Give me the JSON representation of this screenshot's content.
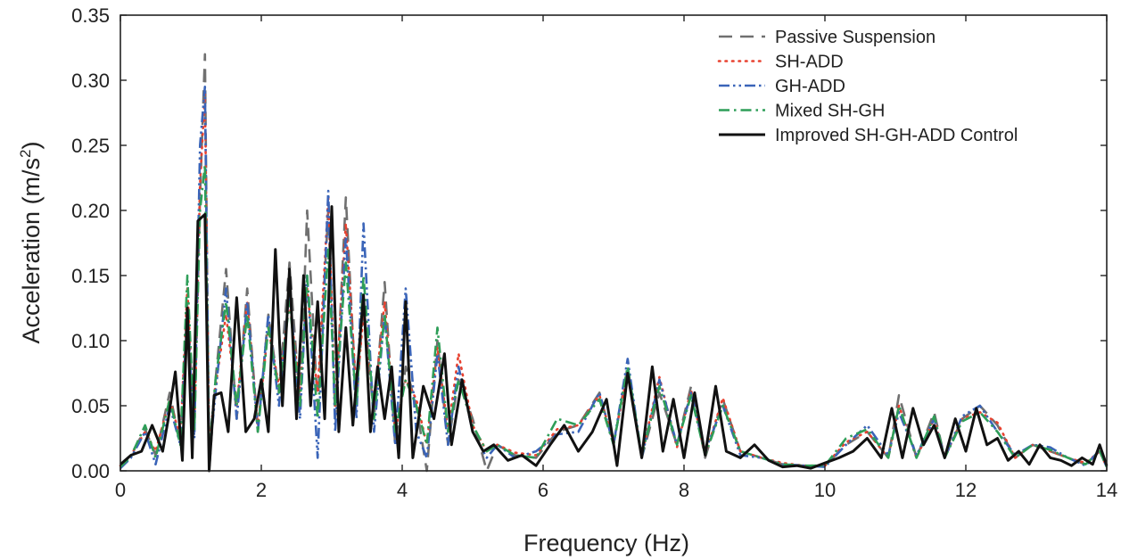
{
  "chart_data": {
    "type": "line",
    "title": "",
    "xlabel": "Frequency (Hz)",
    "ylabel_main": "Acceleration (m/s",
    "ylabel_sup": "2",
    "ylabel_tail": ")",
    "xlim": [
      0,
      14
    ],
    "ylim": [
      0,
      0.35
    ],
    "xticks": [
      0,
      2,
      4,
      6,
      8,
      10,
      12,
      14
    ],
    "xtick_labels": [
      "0",
      "2",
      "4",
      "6",
      "8",
      "10",
      "12",
      "14"
    ],
    "yticks": [
      0,
      0.05,
      0.1,
      0.15,
      0.2,
      0.25,
      0.3,
      0.35
    ],
    "ytick_labels": [
      "0.00",
      "0.05",
      "0.10",
      "0.15",
      "0.20",
      "0.25",
      "0.30",
      "0.35"
    ],
    "grid": false,
    "legend_position": "top-right",
    "series": [
      {
        "name": "Passive Suspension",
        "style": "dashed",
        "color": "#707070",
        "x": [
          0,
          0.15,
          0.35,
          0.5,
          0.7,
          0.85,
          0.95,
          1.05,
          1.13,
          1.2,
          1.26,
          1.35,
          1.5,
          1.65,
          1.8,
          1.95,
          2.1,
          2.25,
          2.4,
          2.55,
          2.65,
          2.8,
          2.95,
          3.05,
          3.2,
          3.35,
          3.45,
          3.6,
          3.75,
          3.9,
          4.05,
          4.2,
          4.35,
          4.5,
          4.65,
          4.8,
          5.0,
          5.2,
          5.35,
          5.6,
          5.9,
          6.2,
          6.5,
          6.8,
          7.0,
          7.2,
          7.4,
          7.65,
          7.9,
          8.1,
          8.3,
          8.55,
          8.8,
          9.1,
          9.4,
          9.7,
          10.0,
          10.3,
          10.6,
          10.9,
          11.05,
          11.3,
          11.55,
          11.7,
          11.95,
          12.2,
          12.45,
          12.7,
          12.95,
          13.2,
          13.45,
          13.7,
          13.9,
          14.0
        ],
        "y": [
          0.004,
          0.012,
          0.032,
          0.012,
          0.06,
          0.02,
          0.13,
          0.03,
          0.21,
          0.32,
          0.0,
          0.07,
          0.155,
          0.04,
          0.14,
          0.03,
          0.12,
          0.06,
          0.16,
          0.05,
          0.2,
          0.05,
          0.2,
          0.04,
          0.21,
          0.05,
          0.13,
          0.04,
          0.145,
          0.02,
          0.08,
          0.05,
          0.0,
          0.1,
          0.02,
          0.07,
          0.04,
          0.0,
          0.02,
          0.012,
          0.01,
          0.03,
          0.035,
          0.06,
          0.02,
          0.08,
          0.01,
          0.06,
          0.02,
          0.065,
          0.01,
          0.055,
          0.015,
          0.01,
          0.005,
          0.004,
          0.004,
          0.02,
          0.03,
          0.01,
          0.058,
          0.01,
          0.045,
          0.01,
          0.04,
          0.05,
          0.035,
          0.01,
          0.02,
          0.015,
          0.01,
          0.005,
          0.015,
          0.003
        ]
      },
      {
        "name": "SH-ADD",
        "style": "dotted",
        "color": "#e8412f",
        "x": [
          0,
          0.15,
          0.35,
          0.5,
          0.7,
          0.85,
          0.95,
          1.05,
          1.13,
          1.2,
          1.26,
          1.35,
          1.5,
          1.65,
          1.8,
          1.95,
          2.1,
          2.25,
          2.4,
          2.55,
          2.65,
          2.8,
          2.95,
          3.05,
          3.2,
          3.35,
          3.45,
          3.6,
          3.75,
          3.9,
          4.05,
          4.2,
          4.35,
          4.5,
          4.65,
          4.8,
          5.0,
          5.2,
          5.35,
          5.6,
          5.9,
          6.2,
          6.5,
          6.8,
          7.0,
          7.2,
          7.4,
          7.65,
          7.9,
          8.1,
          8.3,
          8.55,
          8.8,
          9.1,
          9.4,
          9.7,
          10.0,
          10.3,
          10.6,
          10.9,
          11.05,
          11.3,
          11.55,
          11.7,
          11.95,
          12.2,
          12.45,
          12.7,
          12.95,
          13.2,
          13.45,
          13.7,
          13.9,
          14.0
        ],
        "y": [
          0.004,
          0.012,
          0.03,
          0.015,
          0.055,
          0.025,
          0.14,
          0.03,
          0.22,
          0.29,
          0.02,
          0.065,
          0.12,
          0.05,
          0.13,
          0.035,
          0.11,
          0.065,
          0.13,
          0.06,
          0.14,
          0.06,
          0.21,
          0.05,
          0.19,
          0.06,
          0.12,
          0.05,
          0.13,
          0.03,
          0.07,
          0.055,
          0.02,
          0.095,
          0.03,
          0.09,
          0.035,
          0.015,
          0.02,
          0.014,
          0.012,
          0.032,
          0.035,
          0.058,
          0.022,
          0.075,
          0.012,
          0.072,
          0.018,
          0.062,
          0.012,
          0.056,
          0.015,
          0.01,
          0.006,
          0.004,
          0.004,
          0.022,
          0.03,
          0.01,
          0.05,
          0.01,
          0.04,
          0.01,
          0.04,
          0.045,
          0.037,
          0.01,
          0.02,
          0.015,
          0.01,
          0.006,
          0.015,
          0.003
        ]
      },
      {
        "name": "GH-ADD",
        "style": "dashdotdot",
        "color": "#3a64b8",
        "x": [
          0,
          0.15,
          0.35,
          0.5,
          0.7,
          0.85,
          0.95,
          1.05,
          1.13,
          1.2,
          1.26,
          1.35,
          1.5,
          1.65,
          1.8,
          1.95,
          2.1,
          2.25,
          2.4,
          2.55,
          2.65,
          2.8,
          2.95,
          3.05,
          3.2,
          3.35,
          3.45,
          3.6,
          3.75,
          3.9,
          4.05,
          4.2,
          4.35,
          4.5,
          4.65,
          4.8,
          5.0,
          5.2,
          5.35,
          5.6,
          5.9,
          6.2,
          6.5,
          6.8,
          7.0,
          7.2,
          7.4,
          7.65,
          7.9,
          8.1,
          8.3,
          8.55,
          8.8,
          9.1,
          9.4,
          9.7,
          10.0,
          10.3,
          10.6,
          10.9,
          11.05,
          11.3,
          11.55,
          11.7,
          11.95,
          12.2,
          12.45,
          12.7,
          12.95,
          13.2,
          13.45,
          13.7,
          13.9,
          14.0
        ],
        "y": [
          0.002,
          0.01,
          0.03,
          0.005,
          0.05,
          0.02,
          0.12,
          0.025,
          0.25,
          0.295,
          0.01,
          0.06,
          0.14,
          0.04,
          0.13,
          0.03,
          0.12,
          0.05,
          0.14,
          0.04,
          0.15,
          0.01,
          0.215,
          0.03,
          0.18,
          0.04,
          0.19,
          0.03,
          0.12,
          0.02,
          0.14,
          0.03,
          0.01,
          0.09,
          0.02,
          0.08,
          0.03,
          0.01,
          0.02,
          0.01,
          0.015,
          0.028,
          0.03,
          0.06,
          0.02,
          0.086,
          0.01,
          0.07,
          0.02,
          0.06,
          0.015,
          0.05,
          0.012,
          0.01,
          0.005,
          0.004,
          0.003,
          0.02,
          0.035,
          0.012,
          0.045,
          0.012,
          0.04,
          0.01,
          0.042,
          0.05,
          0.03,
          0.012,
          0.02,
          0.018,
          0.01,
          0.004,
          0.016,
          0.003
        ]
      },
      {
        "name": "Mixed SH-GH",
        "style": "dashdot",
        "color": "#2e9e58",
        "x": [
          0,
          0.15,
          0.35,
          0.5,
          0.7,
          0.85,
          0.95,
          1.05,
          1.13,
          1.2,
          1.26,
          1.35,
          1.5,
          1.65,
          1.8,
          1.95,
          2.1,
          2.25,
          2.4,
          2.55,
          2.65,
          2.8,
          2.95,
          3.05,
          3.2,
          3.35,
          3.45,
          3.6,
          3.75,
          3.9,
          4.05,
          4.2,
          4.35,
          4.5,
          4.65,
          4.8,
          5.0,
          5.2,
          5.35,
          5.6,
          5.9,
          6.2,
          6.5,
          6.8,
          7.0,
          7.2,
          7.4,
          7.65,
          7.9,
          8.1,
          8.3,
          8.55,
          8.8,
          9.1,
          9.4,
          9.7,
          10.0,
          10.3,
          10.6,
          10.9,
          11.05,
          11.3,
          11.55,
          11.7,
          11.95,
          12.2,
          12.45,
          12.7,
          12.95,
          13.2,
          13.45,
          13.7,
          13.9,
          14.0
        ],
        "y": [
          0.003,
          0.011,
          0.035,
          0.01,
          0.055,
          0.02,
          0.15,
          0.03,
          0.2,
          0.235,
          0.015,
          0.07,
          0.13,
          0.05,
          0.12,
          0.03,
          0.11,
          0.06,
          0.13,
          0.05,
          0.15,
          0.04,
          0.17,
          0.05,
          0.16,
          0.05,
          0.15,
          0.04,
          0.12,
          0.03,
          0.07,
          0.05,
          0.02,
          0.11,
          0.03,
          0.07,
          0.035,
          0.015,
          0.02,
          0.012,
          0.01,
          0.04,
          0.035,
          0.055,
          0.02,
          0.08,
          0.012,
          0.065,
          0.02,
          0.058,
          0.012,
          0.05,
          0.015,
          0.01,
          0.005,
          0.004,
          0.004,
          0.025,
          0.032,
          0.01,
          0.05,
          0.01,
          0.042,
          0.01,
          0.038,
          0.045,
          0.03,
          0.01,
          0.02,
          0.016,
          0.01,
          0.005,
          0.015,
          0.003
        ]
      },
      {
        "name": "Improved SH-GH-ADD Control",
        "style": "solid",
        "color": "#111111",
        "x": [
          0,
          0.15,
          0.3,
          0.45,
          0.6,
          0.68,
          0.78,
          0.88,
          0.95,
          1.02,
          1.1,
          1.2,
          1.26,
          1.33,
          1.43,
          1.53,
          1.65,
          1.78,
          1.9,
          2.0,
          2.1,
          2.2,
          2.3,
          2.4,
          2.5,
          2.6,
          2.7,
          2.8,
          2.9,
          3.0,
          3.1,
          3.2,
          3.3,
          3.45,
          3.55,
          3.65,
          3.75,
          3.85,
          3.95,
          4.05,
          4.15,
          4.3,
          4.45,
          4.6,
          4.7,
          4.85,
          5.0,
          5.15,
          5.3,
          5.5,
          5.7,
          5.9,
          6.1,
          6.3,
          6.5,
          6.7,
          6.9,
          7.05,
          7.2,
          7.4,
          7.55,
          7.7,
          7.85,
          8.0,
          8.15,
          8.3,
          8.45,
          8.6,
          8.8,
          9.0,
          9.2,
          9.4,
          9.6,
          9.8,
          10.0,
          10.2,
          10.4,
          10.6,
          10.8,
          10.95,
          11.1,
          11.25,
          11.4,
          11.55,
          11.7,
          11.85,
          12.0,
          12.15,
          12.3,
          12.45,
          12.6,
          12.75,
          12.9,
          13.05,
          13.2,
          13.35,
          13.5,
          13.65,
          13.8,
          13.9,
          14.0
        ],
        "y": [
          0.005,
          0.012,
          0.015,
          0.035,
          0.015,
          0.04,
          0.076,
          0.008,
          0.125,
          0.01,
          0.192,
          0.197,
          0.0,
          0.058,
          0.06,
          0.03,
          0.133,
          0.03,
          0.04,
          0.07,
          0.03,
          0.17,
          0.05,
          0.155,
          0.04,
          0.15,
          0.05,
          0.13,
          0.04,
          0.203,
          0.03,
          0.11,
          0.035,
          0.135,
          0.03,
          0.08,
          0.04,
          0.08,
          0.01,
          0.13,
          0.01,
          0.065,
          0.04,
          0.09,
          0.02,
          0.07,
          0.03,
          0.015,
          0.02,
          0.008,
          0.012,
          0.004,
          0.02,
          0.035,
          0.015,
          0.03,
          0.055,
          0.004,
          0.075,
          0.01,
          0.08,
          0.015,
          0.055,
          0.01,
          0.06,
          0.012,
          0.065,
          0.015,
          0.01,
          0.02,
          0.008,
          0.003,
          0.004,
          0.002,
          0.006,
          0.01,
          0.015,
          0.025,
          0.01,
          0.048,
          0.01,
          0.048,
          0.02,
          0.035,
          0.01,
          0.04,
          0.015,
          0.048,
          0.02,
          0.025,
          0.008,
          0.015,
          0.005,
          0.02,
          0.01,
          0.008,
          0.004,
          0.01,
          0.005,
          0.02,
          0.004
        ]
      }
    ]
  }
}
